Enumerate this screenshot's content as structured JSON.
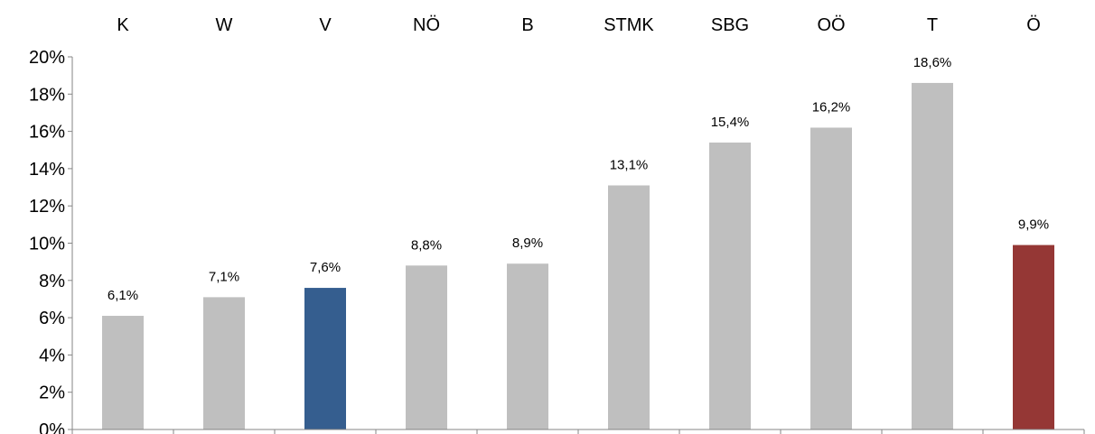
{
  "chart_data": {
    "type": "bar",
    "categories": [
      "K",
      "W",
      "V",
      "NÖ",
      "B",
      "STMK",
      "SBG",
      "OÖ",
      "T",
      "Ö"
    ],
    "values": [
      6.1,
      7.1,
      7.6,
      8.8,
      8.9,
      13.1,
      15.4,
      16.2,
      18.6,
      9.9
    ],
    "data_labels": [
      "6,1%",
      "7,1%",
      "7,6%",
      "8,8%",
      "8,9%",
      "13,1%",
      "15,4%",
      "16,2%",
      "18,6%",
      "9,9%"
    ],
    "bar_colors": [
      "#bfbfbf",
      "#bfbfbf",
      "#355e8f",
      "#bfbfbf",
      "#bfbfbf",
      "#bfbfbf",
      "#bfbfbf",
      "#bfbfbf",
      "#bfbfbf",
      "#953735"
    ],
    "y_ticks": [
      "0%",
      "2%",
      "4%",
      "6%",
      "8%",
      "10%",
      "12%",
      "14%",
      "16%",
      "18%",
      "20%"
    ],
    "ylim": [
      0,
      20
    ],
    "category_labels_position": "top",
    "grid": false,
    "legend": "none"
  }
}
